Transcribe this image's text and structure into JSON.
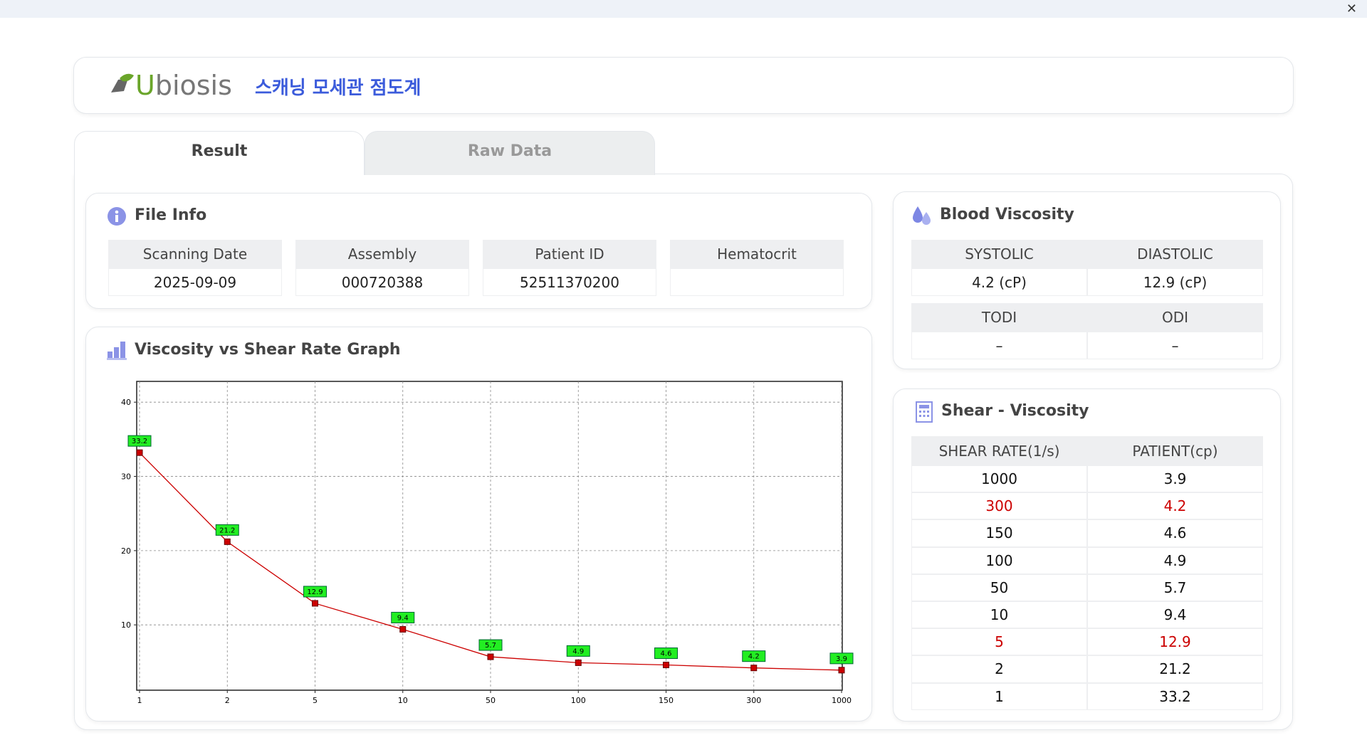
{
  "header": {
    "logo": "Ubiosis",
    "title": "스캐닝 모세관 점도계"
  },
  "tabs": [
    "Result",
    "Raw Data"
  ],
  "file_info": {
    "title": "File Info",
    "columns": [
      "Scanning Date",
      "Assembly",
      "Patient ID",
      "Hematocrit"
    ],
    "values": [
      "2025-09-09",
      "000720388",
      "52511370200"
    ]
  },
  "blood_viscosity": {
    "title": "Blood Viscosity",
    "rows": [
      [
        "SYSTOLIC",
        "DIASTOLIC"
      ],
      [
        "4.2 (cP)",
        "12.9 (cP)"
      ],
      [
        "TODI",
        "ODI"
      ],
      [
        "–",
        "–"
      ]
    ]
  },
  "shear_viscosity": {
    "title": "Shear - Viscosity",
    "columns": [
      "SHEAR RATE(1/s)",
      "PATIENT(cp)"
    ],
    "rows": [
      {
        "values": [
          1000,
          3.9
        ],
        "color": "#111111"
      },
      {
        "values": [
          300,
          4.2
        ],
        "color": "#cc0000"
      },
      {
        "values": [
          150,
          4.6
        ],
        "color": "#111111"
      },
      {
        "values": [
          100,
          4.9
        ],
        "color": "#111111"
      },
      {
        "values": [
          50,
          5.7
        ],
        "color": "#111111"
      },
      {
        "values": [
          10,
          9.4
        ],
        "color": "#111111"
      },
      {
        "values": [
          5,
          12.9
        ],
        "color": "#cc0000"
      },
      {
        "values": [
          2,
          21.2
        ],
        "color": "#111111"
      },
      {
        "values": [
          1,
          33.2
        ],
        "color": "#111111"
      }
    ]
  },
  "chart_data": {
    "type": "line",
    "title": "Viscosity vs Shear Rate Graph",
    "categories": [
      "1",
      "2",
      "5",
      "10",
      "50",
      "100",
      "150",
      "300",
      "1000"
    ],
    "values": [
      33.2,
      21.2,
      12.9,
      9.4,
      5.7,
      4.9,
      4.6,
      4.2,
      3.9
    ],
    "color": "#cc0000",
    "label_color": "#22ee22",
    "ylim": [
      1.2,
      42.8
    ],
    "yticks": [
      10,
      20,
      30,
      40
    ],
    "grid": true
  }
}
